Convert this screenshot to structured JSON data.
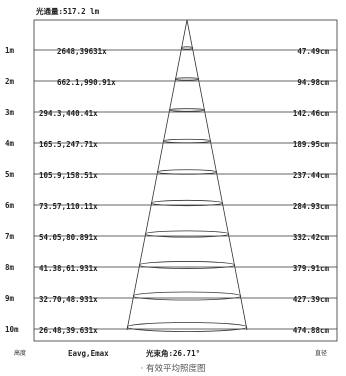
{
  "header": {
    "flux": "光通量:517.2 lm"
  },
  "rows": [
    {
      "distance": "1m",
      "lux": "2648,39631x",
      "diameter": "47.49cm"
    },
    {
      "distance": "2m",
      "lux": "662.1,990.91x",
      "diameter": "94.98cm"
    },
    {
      "distance": "3m",
      "lux": "294.3,440.41x",
      "diameter": "142.46cm"
    },
    {
      "distance": "4m",
      "lux": "165.5,247.71x",
      "diameter": "189.95cm"
    },
    {
      "distance": "5m",
      "lux": "105.9,158.51x",
      "diameter": "237.44cm"
    },
    {
      "distance": "6m",
      "lux": "73.57,110.11x",
      "diameter": "284.93cm"
    },
    {
      "distance": "7m",
      "lux": "54.05,80.891x",
      "diameter": "332.42cm"
    },
    {
      "distance": "8m",
      "lux": "41.38,61.931x",
      "diameter": "379.91cm"
    },
    {
      "distance": "9m",
      "lux": "32.70,48.931x",
      "diameter": "427.39cm"
    },
    {
      "distance": "10m",
      "lux": "26.48,39.631x",
      "diameter": "474.88cm"
    }
  ],
  "footer": {
    "height_label": "高度",
    "lux_label": "Eavg,Emax",
    "angle_label": "光束角:26.71°",
    "diameter_label": "直径"
  },
  "caption": "· 有效平均照度图"
}
